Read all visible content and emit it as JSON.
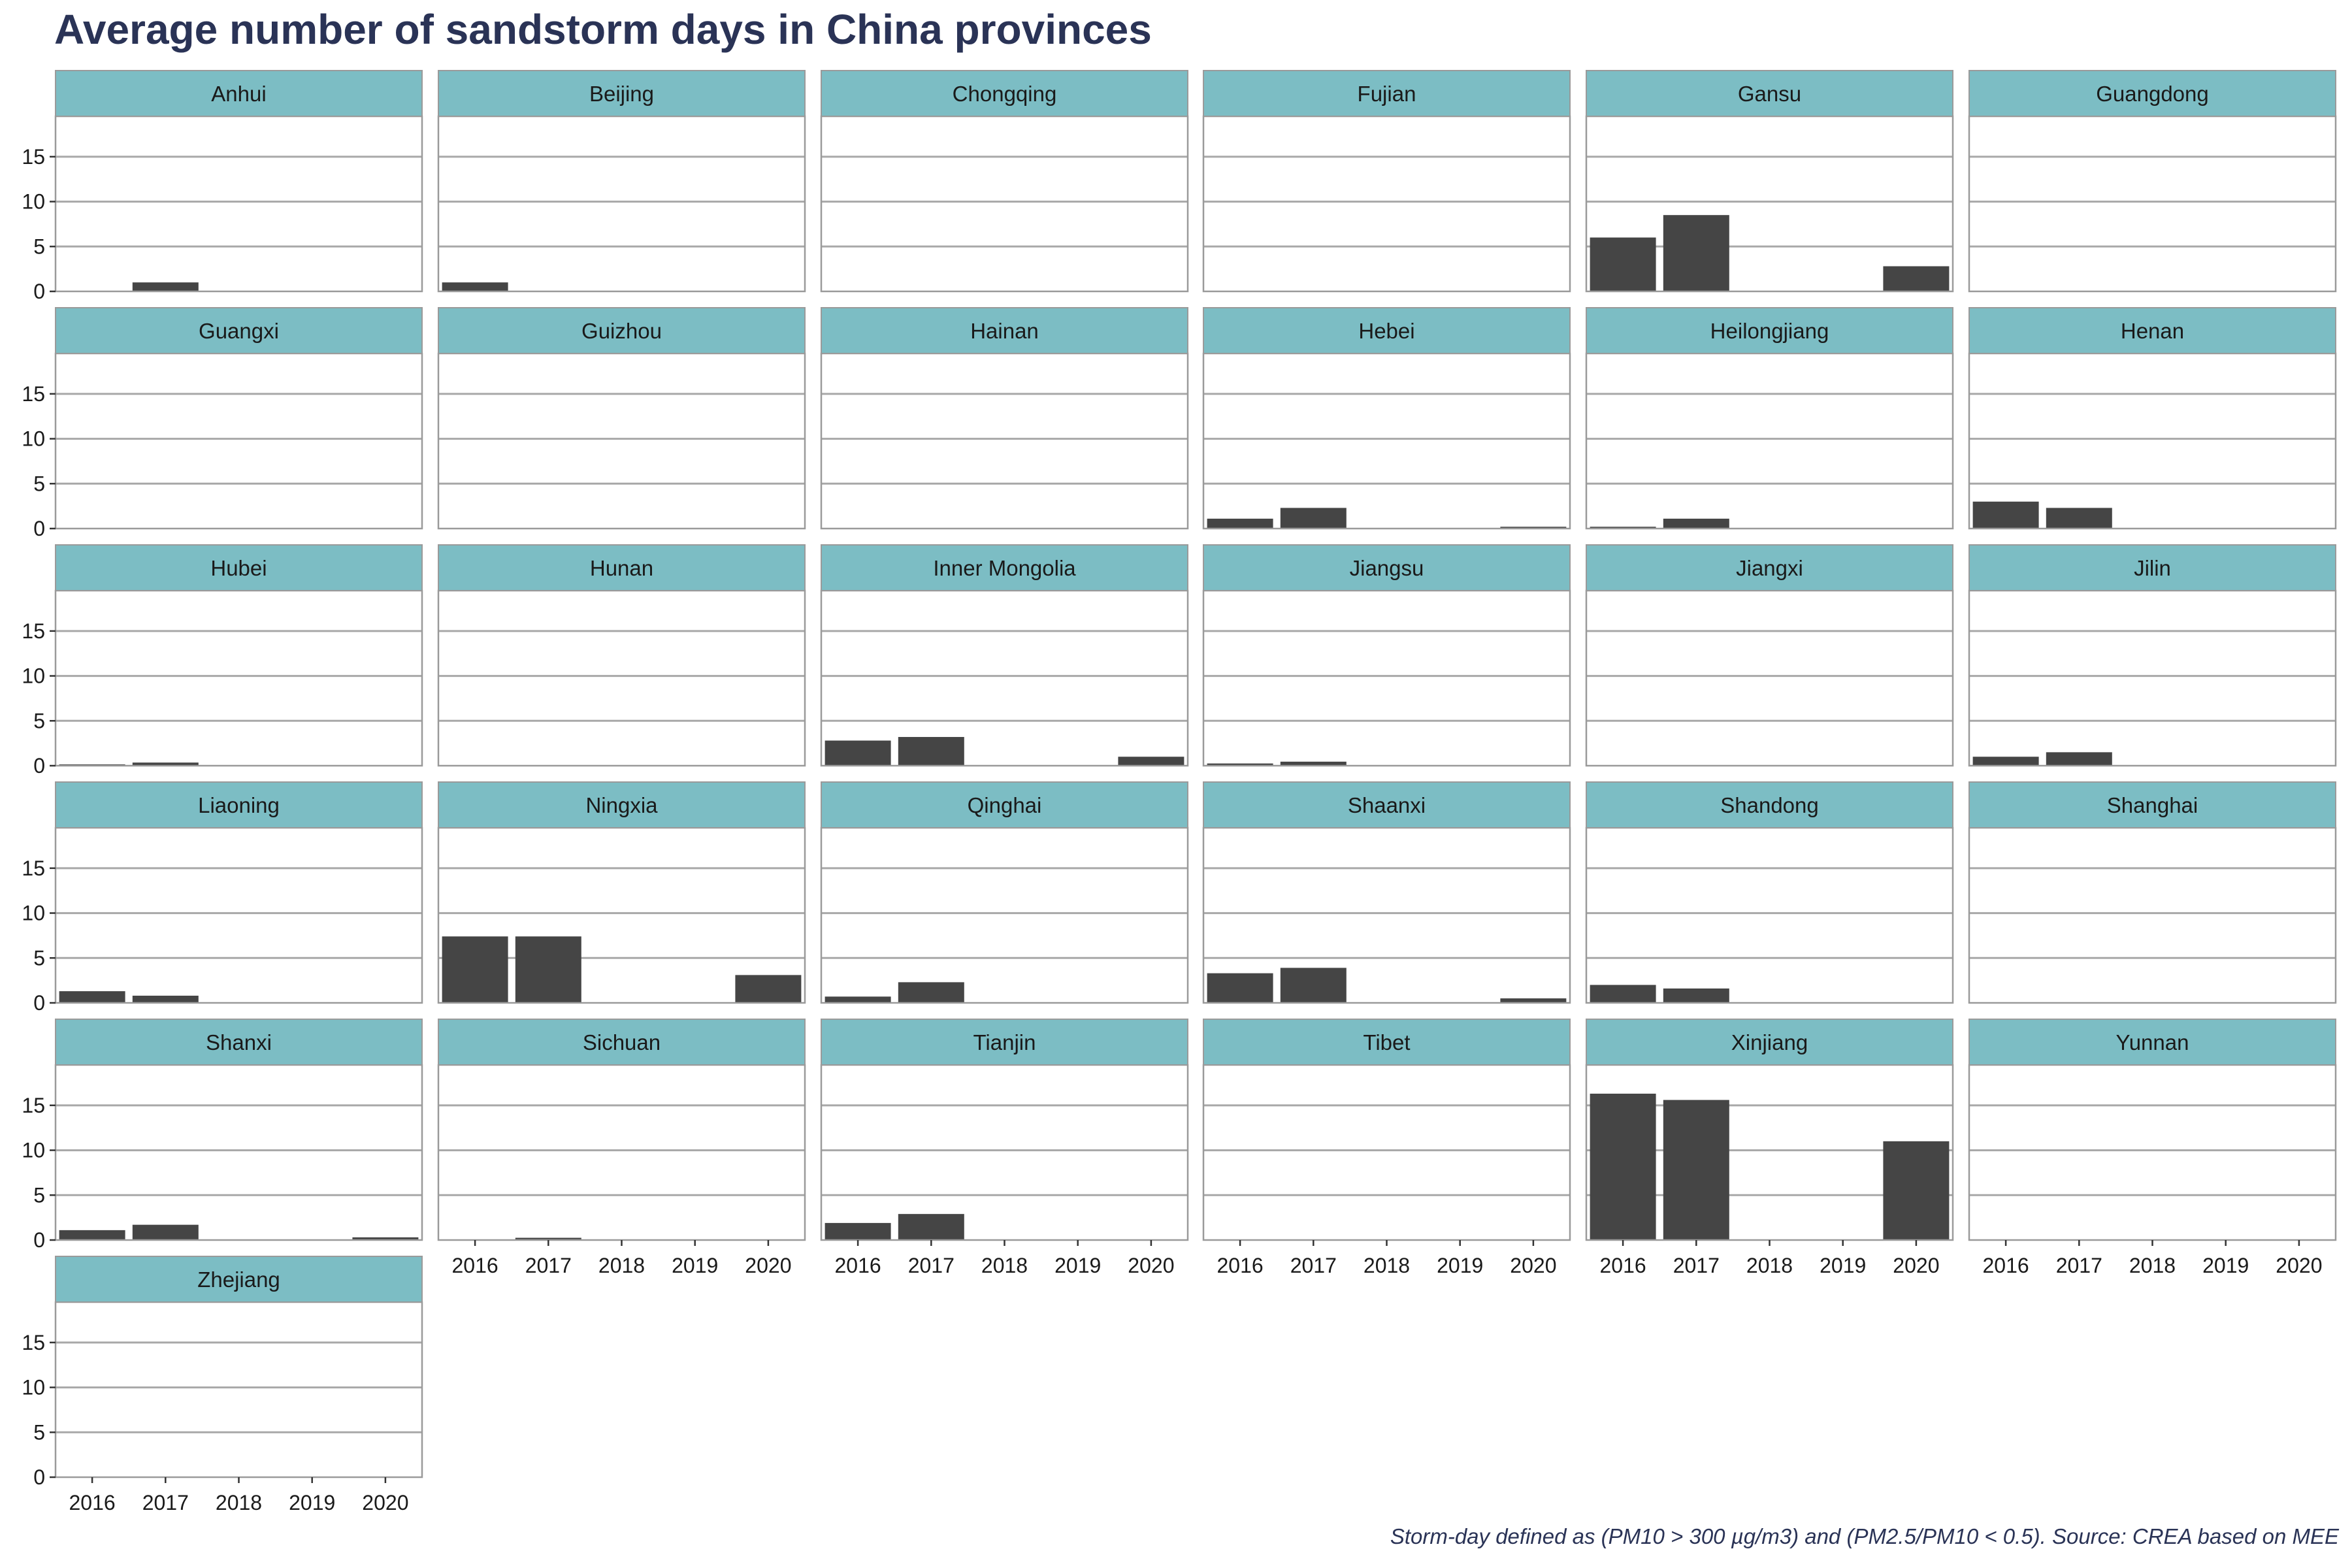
{
  "chart_data": {
    "type": "bar",
    "title": "Average number of sandstorm days in China provinces",
    "caption": "Storm-day defined as (PM10 > 300 µg/m3) and (PM2.5/PM10 < 0.5). Source: CREA based on MEE",
    "categories": [
      "2016",
      "2017",
      "2018",
      "2019",
      "2020"
    ],
    "y_ticks": [
      0,
      5,
      10,
      15
    ],
    "ylim": [
      0,
      19.5
    ],
    "grid": "horizontal",
    "colors": {
      "bar": "#454545",
      "strip": "#7cbdc4",
      "panel_border": "#9a9a9a",
      "grid": "#a8a8a8"
    },
    "panels": [
      {
        "name": "Anhui",
        "values": [
          0,
          1.0,
          0,
          0,
          0
        ]
      },
      {
        "name": "Beijing",
        "values": [
          1.0,
          0,
          0,
          0,
          0
        ]
      },
      {
        "name": "Chongqing",
        "values": [
          0,
          0,
          0,
          0,
          0
        ]
      },
      {
        "name": "Fujian",
        "values": [
          0,
          0,
          0,
          0,
          0
        ]
      },
      {
        "name": "Gansu",
        "values": [
          6.0,
          8.5,
          0,
          0,
          2.8
        ]
      },
      {
        "name": "Guangdong",
        "values": [
          0,
          0,
          0,
          0,
          0
        ]
      },
      {
        "name": "Guangxi",
        "values": [
          0,
          0,
          0,
          0,
          0
        ]
      },
      {
        "name": "Guizhou",
        "values": [
          0,
          0,
          0,
          0,
          0
        ]
      },
      {
        "name": "Hainan",
        "values": [
          0,
          0,
          0,
          0,
          0
        ]
      },
      {
        "name": "Hebei",
        "values": [
          1.1,
          2.3,
          0,
          0,
          0.2
        ]
      },
      {
        "name": "Heilongjiang",
        "values": [
          0.2,
          1.1,
          0,
          0,
          0
        ]
      },
      {
        "name": "Henan",
        "values": [
          3.0,
          2.3,
          0,
          0,
          0
        ]
      },
      {
        "name": "Hubei",
        "values": [
          0.15,
          0.35,
          0,
          0,
          0
        ]
      },
      {
        "name": "Hunan",
        "values": [
          0,
          0,
          0,
          0,
          0
        ]
      },
      {
        "name": "Inner Mongolia",
        "values": [
          2.8,
          3.2,
          0,
          0,
          1.0
        ]
      },
      {
        "name": "Jiangsu",
        "values": [
          0.25,
          0.45,
          0,
          0,
          0
        ]
      },
      {
        "name": "Jiangxi",
        "values": [
          0,
          0,
          0,
          0,
          0
        ]
      },
      {
        "name": "Jilin",
        "values": [
          1.0,
          1.5,
          0,
          0,
          0
        ]
      },
      {
        "name": "Liaoning",
        "values": [
          1.3,
          0.8,
          0,
          0,
          0
        ]
      },
      {
        "name": "Ningxia",
        "values": [
          7.4,
          7.4,
          0,
          0,
          3.1
        ]
      },
      {
        "name": "Qinghai",
        "values": [
          0.7,
          2.3,
          0,
          0,
          0
        ]
      },
      {
        "name": "Shaanxi",
        "values": [
          3.3,
          3.9,
          0,
          0,
          0.5
        ]
      },
      {
        "name": "Shandong",
        "values": [
          2.0,
          1.6,
          0,
          0,
          0
        ]
      },
      {
        "name": "Shanghai",
        "values": [
          0,
          0,
          0,
          0,
          0
        ]
      },
      {
        "name": "Shanxi",
        "values": [
          1.1,
          1.7,
          0,
          0,
          0.3
        ]
      },
      {
        "name": "Sichuan",
        "values": [
          0,
          0.25,
          0,
          0,
          0
        ]
      },
      {
        "name": "Tianjin",
        "values": [
          1.9,
          2.9,
          0,
          0,
          0
        ]
      },
      {
        "name": "Tibet",
        "values": [
          0,
          0,
          0,
          0,
          0
        ]
      },
      {
        "name": "Xinjiang",
        "values": [
          16.3,
          15.6,
          0,
          0,
          11.0
        ]
      },
      {
        "name": "Yunnan",
        "values": [
          0,
          0,
          0,
          0,
          0
        ]
      },
      {
        "name": "Zhejiang",
        "values": [
          0,
          0,
          0,
          0,
          0
        ]
      }
    ]
  }
}
